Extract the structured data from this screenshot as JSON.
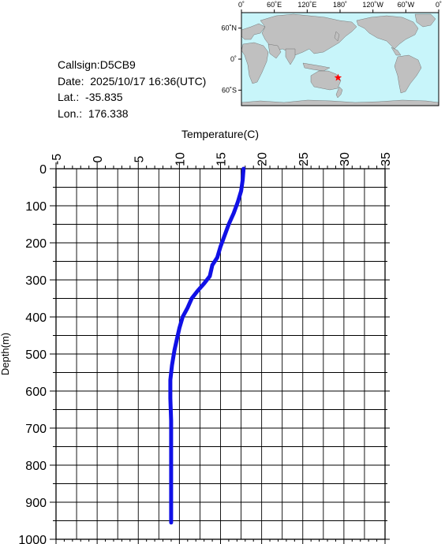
{
  "station": {
    "callsign_label": "Callsign:",
    "callsign": "D5CB9",
    "date_label": "Date:",
    "date": "2025/10/17 16:36(UTC)",
    "lat_label": "Lat.:",
    "lat": "-35.835",
    "lon_label": "Lon.:",
    "lon": "176.338"
  },
  "map": {
    "top_labels": [
      "0˚",
      "60˚E",
      "120˚E",
      "180˚",
      "120˚W",
      "60˚W",
      "0˚"
    ],
    "left_labels": [
      "60˚N",
      "0˚",
      "60˚S"
    ],
    "ocean_color": "#c8f5fa",
    "land_color": "#c0c0c0",
    "marker_color": "#ff0000",
    "marker_icon": "star-icon"
  },
  "chart_data": {
    "type": "line",
    "xlabel": "Temperature(C)",
    "ylabel": "Depth(m)",
    "xlim": [
      -5,
      35
    ],
    "ylim": [
      1000,
      0
    ],
    "x_ticks": [
      "-5",
      "0",
      "5",
      "10",
      "15",
      "20",
      "25",
      "30",
      "35"
    ],
    "y_ticks": [
      "0",
      "100",
      "200",
      "300",
      "400",
      "500",
      "600",
      "700",
      "800",
      "900",
      "1000"
    ],
    "grid": true,
    "line_color": "#1010e6",
    "series": [
      {
        "points": [
          [
            17.8,
            0
          ],
          [
            17.7,
            30
          ],
          [
            17.5,
            60
          ],
          [
            17.1,
            90
          ],
          [
            16.6,
            120
          ],
          [
            16.0,
            150
          ],
          [
            15.5,
            180
          ],
          [
            15.0,
            210
          ],
          [
            14.6,
            240
          ],
          [
            14.0,
            260
          ],
          [
            13.7,
            290
          ],
          [
            13.0,
            310
          ],
          [
            12.2,
            330
          ],
          [
            11.5,
            350
          ],
          [
            11.0,
            375
          ],
          [
            10.4,
            400
          ],
          [
            10.0,
            430
          ],
          [
            9.7,
            460
          ],
          [
            9.4,
            490
          ],
          [
            9.1,
            530
          ],
          [
            8.9,
            570
          ],
          [
            8.9,
            620
          ],
          [
            9.0,
            680
          ],
          [
            9.0,
            750
          ],
          [
            9.0,
            850
          ],
          [
            9.0,
            955
          ]
        ]
      }
    ]
  }
}
